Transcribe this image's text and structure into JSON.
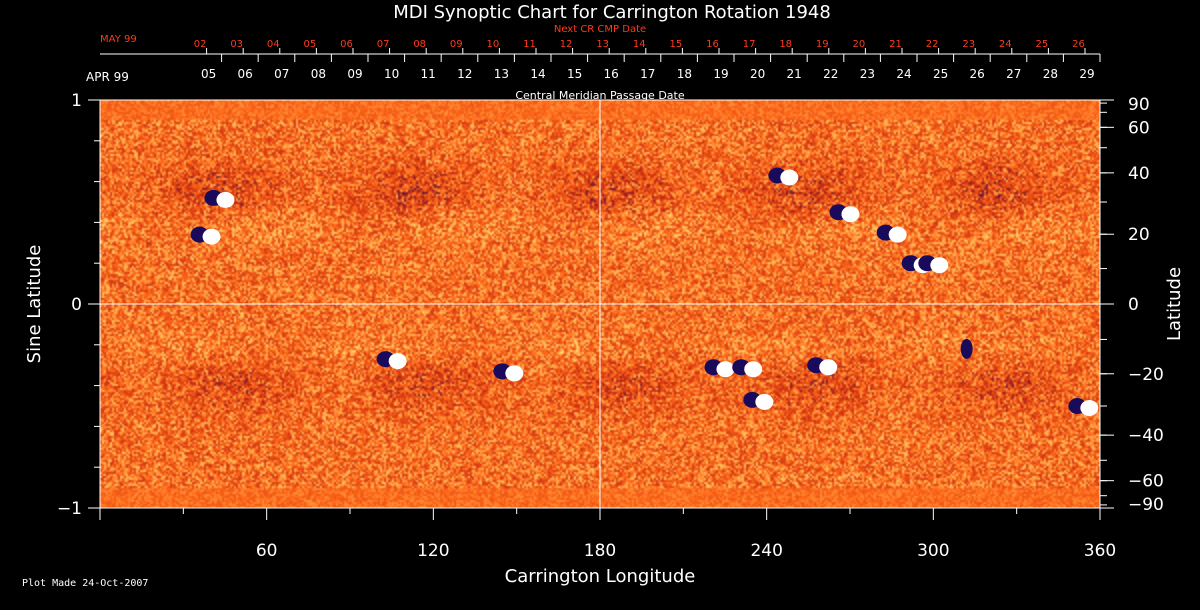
{
  "chart_data": {
    "type": "heatmap",
    "title": "MDI Synoptic Chart for Carrington Rotation 1948",
    "xlabel": "Carrington Longitude",
    "ylabel_left": "Sine Latitude",
    "ylabel_right": "Latitude",
    "xlim": [
      0,
      360
    ],
    "ylim": [
      -1,
      1
    ],
    "x_ticks": [
      60,
      120,
      180,
      240,
      300,
      360
    ],
    "y_ticks_left": [
      1,
      0,
      -1
    ],
    "y_ticks_left_labels": [
      "1",
      "0",
      "−1"
    ],
    "y_ticks_right": [
      90,
      60,
      40,
      20,
      0,
      -20,
      -40,
      -60,
      -90
    ],
    "y_ticks_right_labels": [
      "90",
      "60",
      "40",
      "20",
      "0",
      "−20",
      "−40",
      "−60",
      "−90"
    ],
    "grid_lines": {
      "x": [
        180
      ],
      "y": [
        0
      ]
    },
    "top_axis_current": {
      "month_label": "APR 99",
      "title": "Central Meridian Passage Date",
      "dates": [
        "29",
        "28",
        "27",
        "26",
        "25",
        "24",
        "23",
        "22",
        "21",
        "20",
        "19",
        "18",
        "17",
        "16",
        "15",
        "14",
        "13",
        "12",
        "11",
        "10",
        "09",
        "08",
        "07",
        "06",
        "05"
      ],
      "start_longitude": 360,
      "degrees_per_day": 13.1763,
      "color": "#ffffff"
    },
    "top_axis_next": {
      "month_label": "MAY 99",
      "title": "Next CR CMP Date",
      "dates": [
        "26",
        "25",
        "24",
        "23",
        "22",
        "21",
        "20",
        "19",
        "18",
        "17",
        "16",
        "15",
        "14",
        "13",
        "12",
        "11",
        "10",
        "09",
        "08",
        "07",
        "06",
        "05",
        "04",
        "03",
        "02"
      ],
      "start_longitude": 354.6,
      "degrees_per_day": 13.1763,
      "color": "#ff3a1a"
    },
    "colormap": [
      "#1a0a5c",
      "#c82a10",
      "#ff6a1a",
      "#ffd870",
      "#ffffff"
    ],
    "active_regions": [
      {
        "lon": 38,
        "sinlat": 0.34,
        "polarity": "mixed"
      },
      {
        "lon": 43,
        "sinlat": 0.52,
        "polarity": "mixed"
      },
      {
        "lon": 105,
        "sinlat": -0.27,
        "polarity": "mixed"
      },
      {
        "lon": 147,
        "sinlat": -0.33,
        "polarity": "mixed"
      },
      {
        "lon": 246,
        "sinlat": 0.63,
        "polarity": "mixed"
      },
      {
        "lon": 268,
        "sinlat": 0.45,
        "polarity": "mixed"
      },
      {
        "lon": 285,
        "sinlat": 0.35,
        "polarity": "mixed"
      },
      {
        "lon": 294,
        "sinlat": 0.2,
        "polarity": "mixed"
      },
      {
        "lon": 300,
        "sinlat": 0.2,
        "polarity": "mixed"
      },
      {
        "lon": 223,
        "sinlat": -0.31,
        "polarity": "mixed"
      },
      {
        "lon": 233,
        "sinlat": -0.31,
        "polarity": "mixed"
      },
      {
        "lon": 237,
        "sinlat": -0.47,
        "polarity": "mixed"
      },
      {
        "lon": 260,
        "sinlat": -0.3,
        "polarity": "mixed"
      },
      {
        "lon": 312,
        "sinlat": -0.22,
        "polarity": "negative"
      },
      {
        "lon": 354,
        "sinlat": -0.5,
        "polarity": "mixed"
      }
    ]
  },
  "footer": {
    "plot_made": "Plot Made 24-Oct-2007"
  }
}
